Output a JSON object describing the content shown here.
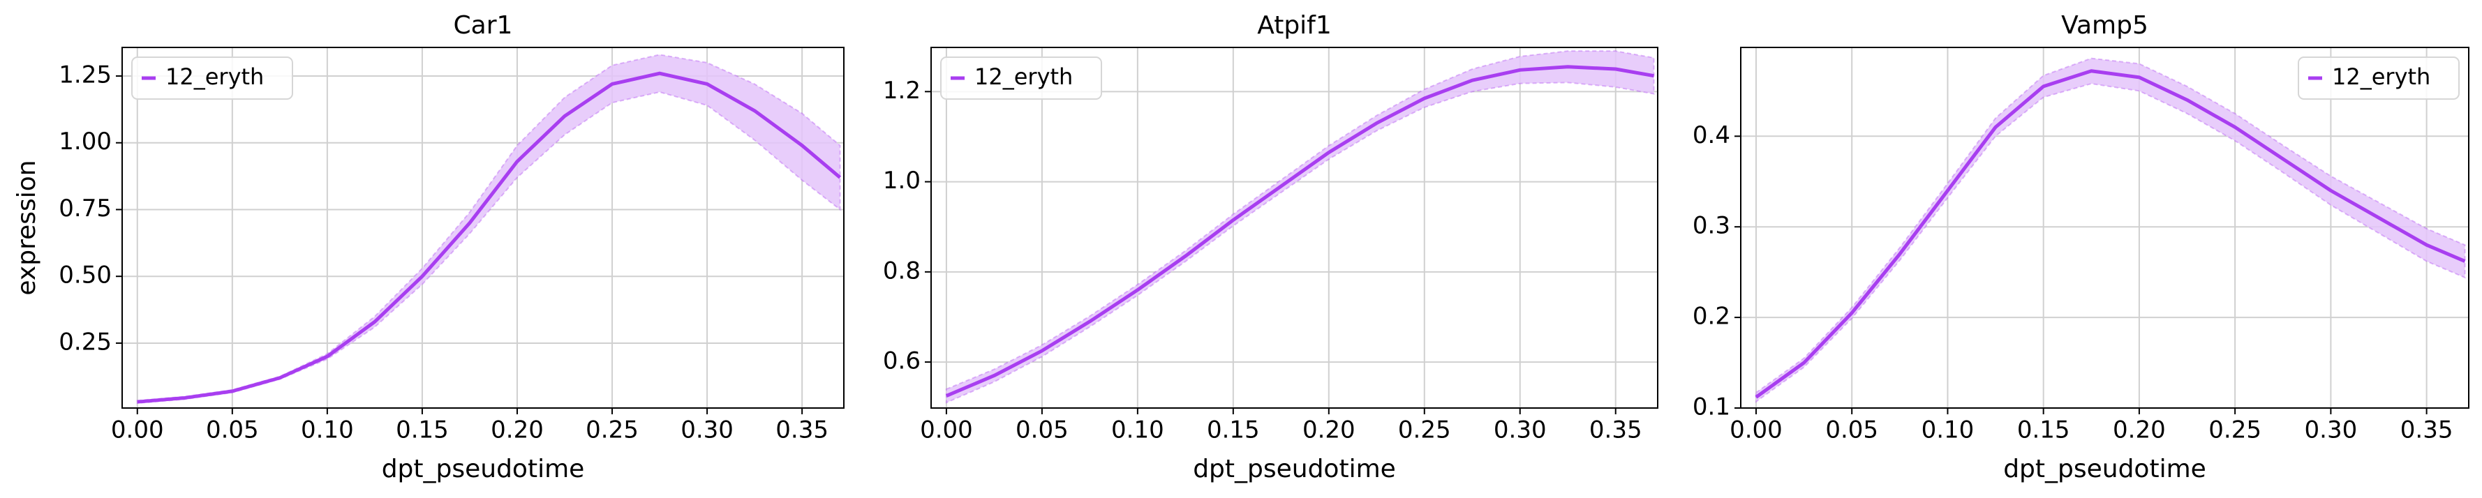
{
  "chart_data": [
    {
      "type": "line",
      "title": "Car1",
      "xlabel": "dpt_pseudotime",
      "ylabel": "expression",
      "x": [
        0,
        0.025,
        0.05,
        0.075,
        0.1,
        0.125,
        0.15,
        0.175,
        0.2,
        0.225,
        0.25,
        0.275,
        0.3,
        0.325,
        0.35,
        0.37
      ],
      "series": [
        {
          "name": "12_eryth",
          "color": "#a83ef0",
          "band_color": "#e4c4fa",
          "values": [
            0.03,
            0.045,
            0.07,
            0.12,
            0.2,
            0.33,
            0.5,
            0.7,
            0.93,
            1.1,
            1.22,
            1.26,
            1.22,
            1.12,
            0.99,
            0.87
          ],
          "lower": [
            0.025,
            0.04,
            0.065,
            0.115,
            0.19,
            0.31,
            0.47,
            0.66,
            0.87,
            1.03,
            1.15,
            1.19,
            1.14,
            1.01,
            0.86,
            0.75
          ],
          "upper": [
            0.035,
            0.05,
            0.075,
            0.125,
            0.21,
            0.35,
            0.53,
            0.74,
            0.99,
            1.17,
            1.29,
            1.33,
            1.3,
            1.22,
            1.11,
            0.99
          ]
        }
      ],
      "xlim": [
        -0.008,
        0.372
      ],
      "ylim": [
        0.007,
        1.357
      ],
      "xticks": [
        {
          "value": 0,
          "label": "0.00"
        },
        0.05,
        {
          "value": 0.1,
          "label": "0.10"
        },
        0.15,
        {
          "value": 0.2,
          "label": "0.20"
        },
        0.25,
        {
          "value": 0.3,
          "label": "0.30"
        },
        0.35
      ],
      "yticks": [
        0.25,
        {
          "value": 0.5,
          "label": "0.50"
        },
        0.75,
        {
          "value": 1,
          "label": "1.00"
        },
        1.25
      ],
      "grid": true,
      "legend": "upper left"
    },
    {
      "type": "line",
      "title": "Atpif1",
      "xlabel": "dpt_pseudotime",
      "x": [
        0,
        0.025,
        0.05,
        0.075,
        0.1,
        0.125,
        0.15,
        0.175,
        0.2,
        0.225,
        0.25,
        0.275,
        0.3,
        0.325,
        0.35,
        0.37
      ],
      "series": [
        {
          "name": "12_eryth",
          "color": "#a83ef0",
          "band_color": "#e4c4fa",
          "values": [
            0.525,
            0.57,
            0.625,
            0.69,
            0.76,
            0.835,
            0.915,
            0.99,
            1.065,
            1.13,
            1.185,
            1.225,
            1.248,
            1.255,
            1.25,
            1.235
          ],
          "lower": [
            0.51,
            0.556,
            0.612,
            0.678,
            0.748,
            0.823,
            0.902,
            0.976,
            1.05,
            1.113,
            1.165,
            1.2,
            1.218,
            1.22,
            1.21,
            1.195
          ],
          "upper": [
            0.54,
            0.584,
            0.638,
            0.702,
            0.772,
            0.847,
            0.928,
            1.004,
            1.08,
            1.147,
            1.205,
            1.25,
            1.278,
            1.29,
            1.29,
            1.275
          ]
        }
      ],
      "xlim": [
        -0.008,
        0.372
      ],
      "ylim": [
        0.498,
        1.298
      ],
      "xticks": [
        {
          "value": 0,
          "label": "0.00"
        },
        0.05,
        {
          "value": 0.1,
          "label": "0.10"
        },
        0.15,
        {
          "value": 0.2,
          "label": "0.20"
        },
        0.25,
        {
          "value": 0.3,
          "label": "0.30"
        },
        0.35
      ],
      "yticks": [
        0.6,
        0.8,
        {
          "value": 1,
          "label": "1.0"
        },
        1.2
      ],
      "grid": true,
      "legend": "upper left"
    },
    {
      "type": "line",
      "title": "Vamp5",
      "xlabel": "dpt_pseudotime",
      "x": [
        0,
        0.025,
        0.05,
        0.075,
        0.1,
        0.125,
        0.15,
        0.175,
        0.2,
        0.225,
        0.25,
        0.275,
        0.3,
        0.325,
        0.35,
        0.37
      ],
      "series": [
        {
          "name": "12_eryth",
          "color": "#a83ef0",
          "band_color": "#e4c4fa",
          "values": [
            0.112,
            0.15,
            0.205,
            0.27,
            0.34,
            0.41,
            0.455,
            0.472,
            0.465,
            0.44,
            0.41,
            0.375,
            0.34,
            0.31,
            0.28,
            0.262
          ],
          "lower": [
            0.107,
            0.145,
            0.199,
            0.263,
            0.332,
            0.4,
            0.443,
            0.458,
            0.45,
            0.425,
            0.395,
            0.36,
            0.324,
            0.293,
            0.262,
            0.244
          ],
          "upper": [
            0.117,
            0.155,
            0.211,
            0.277,
            0.348,
            0.42,
            0.467,
            0.486,
            0.48,
            0.455,
            0.425,
            0.39,
            0.356,
            0.327,
            0.298,
            0.28
          ]
        }
      ],
      "xlim": [
        -0.008,
        0.372
      ],
      "ylim": [
        0.1,
        0.498
      ],
      "xticks": [
        {
          "value": 0,
          "label": "0.00"
        },
        0.05,
        {
          "value": 0.1,
          "label": "0.10"
        },
        0.15,
        {
          "value": 0.2,
          "label": "0.20"
        },
        0.25,
        {
          "value": 0.3,
          "label": "0.30"
        },
        0.35
      ],
      "yticks": [
        0.1,
        0.2,
        0.3,
        0.4
      ],
      "grid": true,
      "legend": "upper right"
    }
  ]
}
